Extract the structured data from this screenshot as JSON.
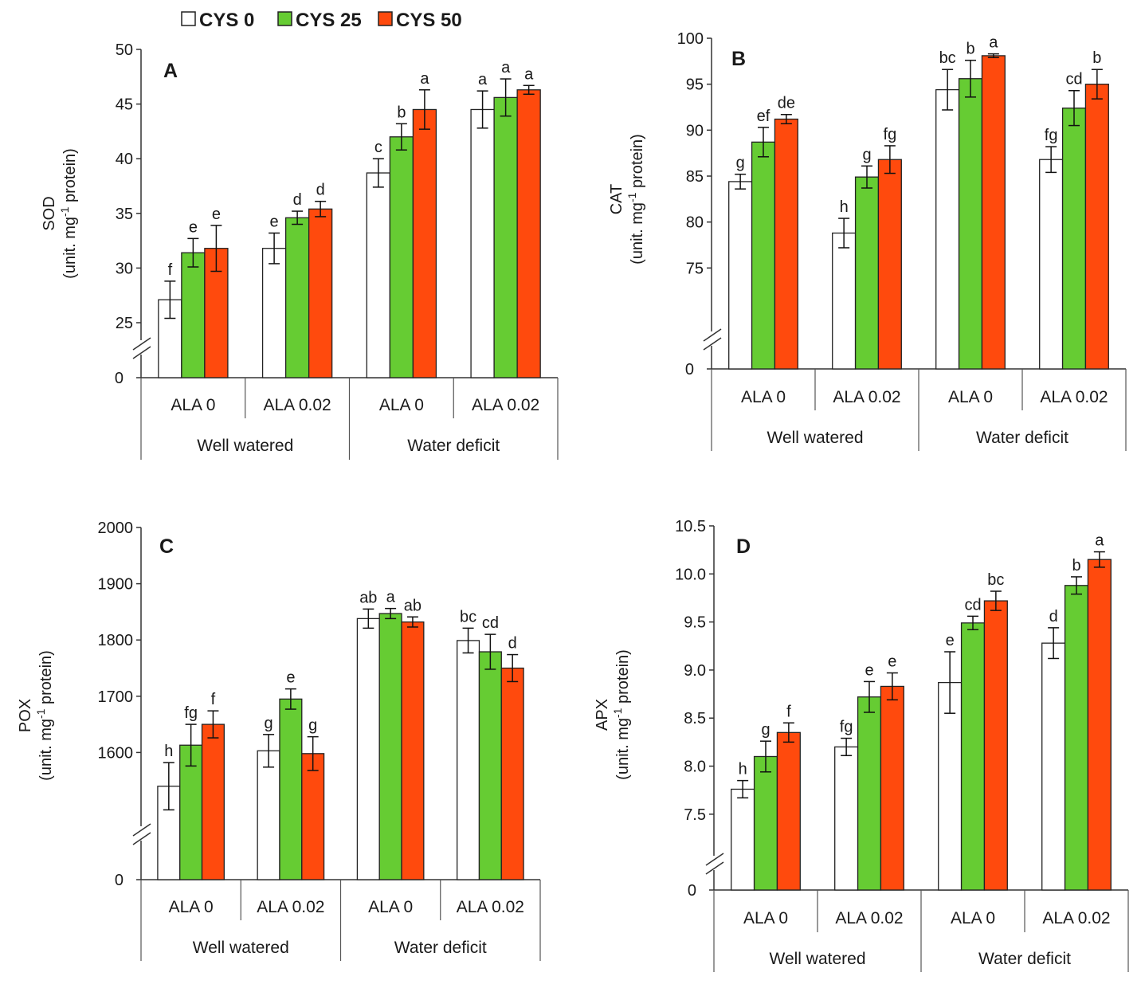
{
  "legend": [
    {
      "label": "CYS 0",
      "color": "#ffffff"
    },
    {
      "label": "CYS 25",
      "color": "#66cc33"
    },
    {
      "label": "CYS 50",
      "color": "#ff4a0d"
    }
  ],
  "chart_data": [
    {
      "panel": "A",
      "type": "bar",
      "ylabel_main": "SOD",
      "ylabel_unit": "(unit. mg-1 protein)",
      "ylim": [
        25,
        50
      ],
      "break_label": "0",
      "yticks": [
        "50",
        "45",
        "40",
        "35",
        "30",
        "25"
      ],
      "categories": [
        "ALA 0",
        "ALA 0.02",
        "ALA 0",
        "ALA 0.02"
      ],
      "groups": [
        "Well watered",
        "Water deficit"
      ],
      "series": [
        {
          "name": "CYS 0",
          "values": [
            27.1,
            31.8,
            38.7,
            44.5
          ],
          "errors": [
            1.7,
            1.4,
            1.3,
            1.7
          ],
          "letters": [
            "f",
            "e",
            "c",
            "a"
          ]
        },
        {
          "name": "CYS 25",
          "values": [
            31.4,
            34.6,
            42.0,
            45.6
          ],
          "errors": [
            1.3,
            0.6,
            1.2,
            1.7
          ],
          "letters": [
            "e",
            "d",
            "b",
            "a"
          ]
        },
        {
          "name": "CYS 50",
          "values": [
            31.8,
            35.4,
            44.5,
            46.3
          ],
          "errors": [
            2.1,
            0.7,
            1.8,
            0.4
          ],
          "letters": [
            "e",
            "d",
            "a",
            "a"
          ]
        }
      ]
    },
    {
      "panel": "B",
      "type": "bar",
      "ylabel_main": "CAT",
      "ylabel_unit": "(unit. mg-1 protein)",
      "ylim": [
        70,
        100
      ],
      "break_label": "0",
      "yticks": [
        "100",
        "95",
        "90",
        "85",
        "80",
        "75"
      ],
      "categories": [
        "ALA 0",
        "ALA 0.02",
        "ALA 0",
        "ALA 0.02"
      ],
      "groups": [
        "Well watered",
        "Water deficit"
      ],
      "series": [
        {
          "name": "CYS 0",
          "values": [
            84.4,
            78.8,
            94.4,
            86.8
          ],
          "errors": [
            0.8,
            1.6,
            2.2,
            1.4
          ],
          "letters": [
            "g",
            "h",
            "bc",
            "fg"
          ]
        },
        {
          "name": "CYS 25",
          "values": [
            88.7,
            84.9,
            95.6,
            92.4
          ],
          "errors": [
            1.6,
            1.2,
            2.0,
            1.9
          ],
          "letters": [
            "ef",
            "g",
            "b",
            "cd"
          ]
        },
        {
          "name": "CYS 50",
          "values": [
            91.2,
            86.8,
            98.1,
            95.0
          ],
          "errors": [
            0.5,
            1.5,
            0.2,
            1.6
          ],
          "letters": [
            "de",
            "fg",
            "a",
            "b"
          ]
        }
      ]
    },
    {
      "panel": "C",
      "type": "bar",
      "ylabel_main": "POX",
      "ylabel_unit": "(unit. mg-1 protein)",
      "ylim": [
        1500,
        2000
      ],
      "break_label": "0",
      "yticks": [
        "2000",
        "1900",
        "1800",
        "1700",
        "1600"
      ],
      "categories": [
        "ALA 0",
        "ALA 0.02",
        "ALA 0",
        "ALA 0.02"
      ],
      "groups": [
        "Well watered",
        "Water deficit"
      ],
      "series": [
        {
          "name": "CYS 0",
          "values": [
            1540,
            1603,
            1838,
            1799
          ],
          "errors": [
            42,
            29,
            17,
            22
          ],
          "letters": [
            "h",
            "g",
            "ab",
            "bc"
          ]
        },
        {
          "name": "CYS 25",
          "values": [
            1613,
            1695,
            1847,
            1779
          ],
          "errors": [
            37,
            18,
            9,
            31
          ],
          "letters": [
            "fg",
            "e",
            "a",
            "cd"
          ]
        },
        {
          "name": "CYS 50",
          "values": [
            1650,
            1598,
            1832,
            1750
          ],
          "errors": [
            24,
            30,
            9,
            24
          ],
          "letters": [
            "f",
            "g",
            "ab",
            "d"
          ]
        }
      ]
    },
    {
      "panel": "D",
      "type": "bar",
      "ylabel_main": "APX",
      "ylabel_unit": "(unit. mg-1 protein)",
      "ylim": [
        7.25,
        10.5
      ],
      "break_label": "0",
      "yticks": [
        "10.5",
        "10.0",
        "9.5",
        "9.0",
        "8.5",
        "8.0",
        "7.5"
      ],
      "categories": [
        "ALA 0",
        "ALA 0.02",
        "ALA 0",
        "ALA 0.02"
      ],
      "groups": [
        "Well watered",
        "Water deficit"
      ],
      "series": [
        {
          "name": "CYS 0",
          "values": [
            7.76,
            8.2,
            8.87,
            9.28
          ],
          "errors": [
            0.09,
            0.09,
            0.32,
            0.16
          ],
          "letters": [
            "h",
            "fg",
            "e",
            "d"
          ]
        },
        {
          "name": "CYS 25",
          "values": [
            8.1,
            8.72,
            9.49,
            9.88
          ],
          "errors": [
            0.16,
            0.16,
            0.07,
            0.09
          ],
          "letters": [
            "g",
            "e",
            "cd",
            "b"
          ]
        },
        {
          "name": "CYS 50",
          "values": [
            8.35,
            8.83,
            9.72,
            10.15
          ],
          "errors": [
            0.1,
            0.14,
            0.1,
            0.08
          ],
          "letters": [
            "f",
            "e",
            "bc",
            "a"
          ]
        }
      ]
    }
  ]
}
